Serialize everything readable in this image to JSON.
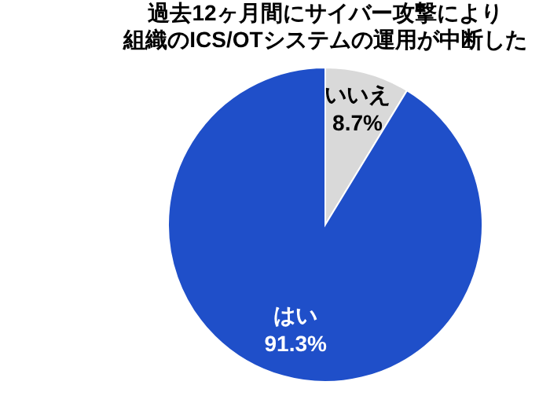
{
  "chart_data": {
    "type": "pie",
    "title": "過去12ヶ月間にサイバー攻撃により",
    "subtitle": "組織のICS/OTシステムの運用が中断した",
    "categories": [
      "いいえ",
      "はい"
    ],
    "values": [
      8.7,
      91.3
    ],
    "colors": [
      "#d9d9d9",
      "#1f4fc9"
    ],
    "value_labels": [
      "8.7%",
      "91.3%"
    ],
    "legend": false
  }
}
